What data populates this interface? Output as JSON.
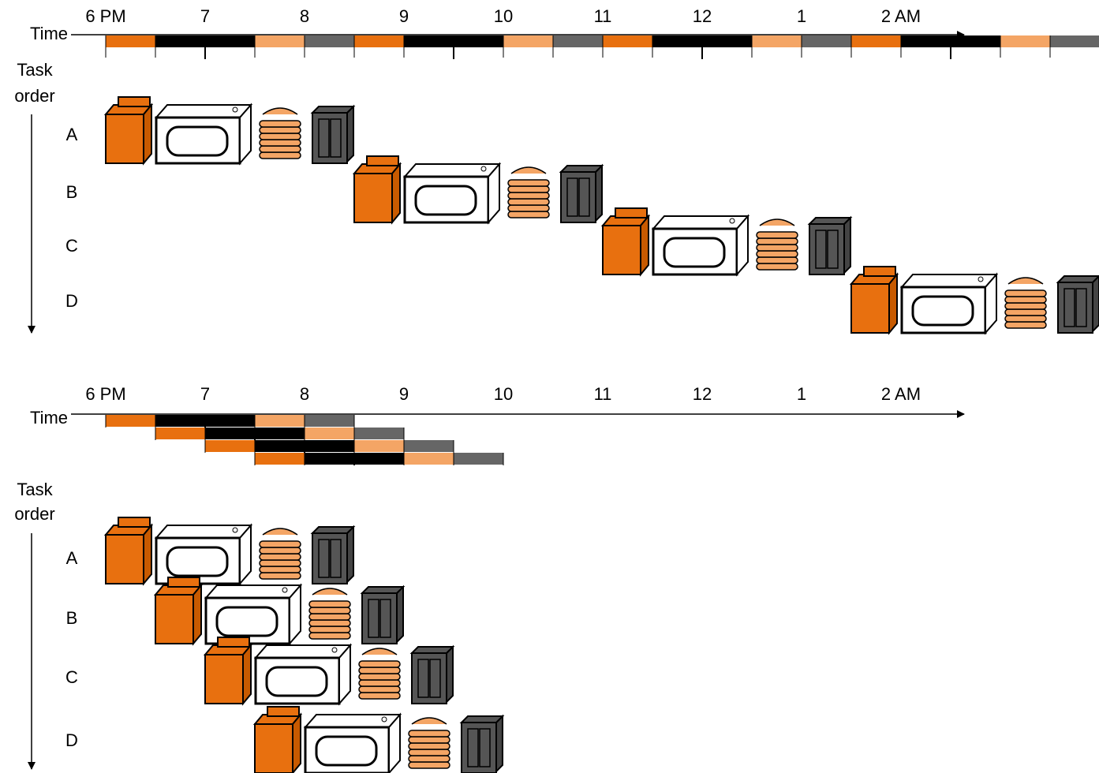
{
  "panels": [
    {
      "axis_label": "Time",
      "time_labels": [
        "6 PM",
        "7",
        "8",
        "9",
        "10",
        "11",
        "12",
        "1",
        "2 AM"
      ],
      "task_axis_label": [
        "Task",
        "order"
      ],
      "tasks": [
        "A",
        "B",
        "C",
        "D"
      ]
    },
    {
      "axis_label": "Time",
      "time_labels": [
        "6 PM",
        "7",
        "8",
        "9",
        "10",
        "11",
        "12",
        "1",
        "2 AM"
      ],
      "task_axis_label": [
        "Task",
        "order"
      ],
      "tasks": [
        "A",
        "B",
        "C",
        "D"
      ]
    }
  ]
}
